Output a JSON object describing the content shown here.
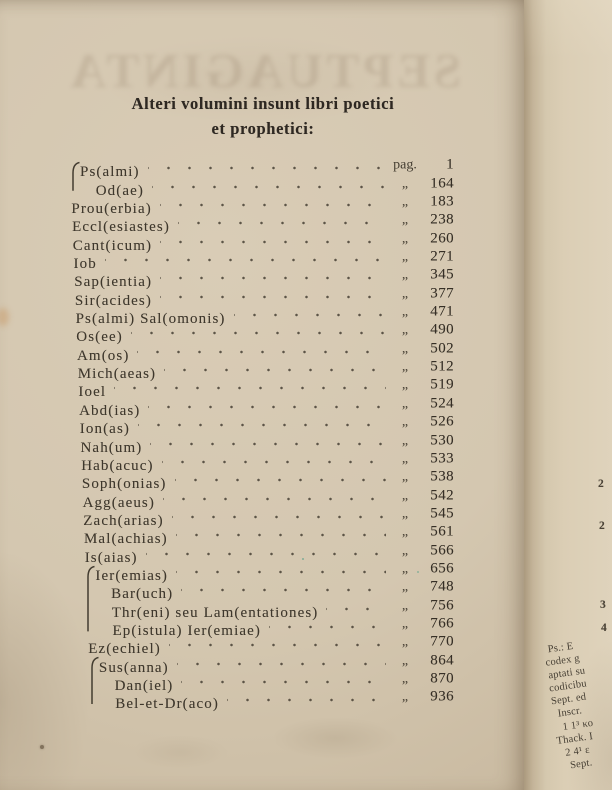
{
  "left_page": {
    "ghost_text": "SEPTUAGINTA",
    "title_line1": "Alteri volumini insunt libri poetici",
    "title_line2": "et prophetici:",
    "page_abbrev": "pag.",
    "ditto_mark": "„",
    "toc": [
      {
        "name": "Ps(almi)",
        "page": "1",
        "mark": "pag.",
        "indent": 0,
        "braced": true
      },
      {
        "name": "Od(ae)",
        "page": "164",
        "indent": 1
      },
      {
        "name": "Prou(erbia)",
        "page": "183",
        "indent": 0
      },
      {
        "name": "Eccl(esiastes)",
        "page": "238",
        "indent": 0
      },
      {
        "name": "Cant(icum)",
        "page": "260",
        "indent": 0
      },
      {
        "name": "Iob",
        "page": "271",
        "indent": 0
      },
      {
        "name": "Sap(ientia)",
        "page": "345",
        "indent": 0
      },
      {
        "name": "Sir(acides)",
        "page": "377",
        "indent": 0
      },
      {
        "name": "Ps(almi) Sal(omonis)",
        "page": "471",
        "indent": 0
      },
      {
        "name": "Os(ee)",
        "page": "490",
        "indent": 0
      },
      {
        "name": "Am(os)",
        "page": "502",
        "indent": 0
      },
      {
        "name": "Mich(aeas)",
        "page": "512",
        "indent": 0
      },
      {
        "name": "Ioel",
        "page": "519",
        "indent": 0
      },
      {
        "name": "Abd(ias)",
        "page": "524",
        "indent": 0
      },
      {
        "name": "Ion(as)",
        "page": "526",
        "indent": 0
      },
      {
        "name": "Nah(um)",
        "page": "530",
        "indent": 0
      },
      {
        "name": "Hab(acuc)",
        "page": "533",
        "indent": 0
      },
      {
        "name": "Soph(onias)",
        "page": "538",
        "indent": 0
      },
      {
        "name": "Agg(aeus)",
        "page": "542",
        "indent": 0
      },
      {
        "name": "Zach(arias)",
        "page": "545",
        "indent": 0
      },
      {
        "name": "Mal(achias)",
        "page": "561",
        "indent": 0
      },
      {
        "name": "Is(aias)",
        "page": "566",
        "indent": 0
      },
      {
        "name": "Ier(emias)",
        "page": "656",
        "indent": 0,
        "braced": true
      },
      {
        "name": "Bar(uch)",
        "page": "748",
        "indent": 1
      },
      {
        "name": "Thr(eni) seu Lam(entationes)",
        "page": "756",
        "indent": 1
      },
      {
        "name": "Ep(istula) Ier(emiae)",
        "page": "766",
        "indent": 1
      },
      {
        "name": "Ez(echiel)",
        "page": "770",
        "indent": 0
      },
      {
        "name": "Sus(anna)",
        "page": "864",
        "indent": 0,
        "braced": true
      },
      {
        "name": "Dan(iel)",
        "page": "870",
        "indent": 1
      },
      {
        "name": "Bel-et-Dr(aco)",
        "page": "936",
        "indent": 1
      }
    ],
    "brace_groups": [
      {
        "start": 0,
        "span": 2
      },
      {
        "start": 22,
        "span": 4
      },
      {
        "start": 27,
        "span": 3
      }
    ]
  },
  "facing_page": {
    "marginal_numbers": [
      "2",
      "2",
      "3",
      "4"
    ],
    "footnote_lines": [
      "Ps.: E",
      "codex g",
      "aptati su",
      "codicibu",
      "Sept. ed",
      "Inscr.",
      "1 1³ κο",
      "Thack. I",
      "2 4¹ ε",
      "Sept."
    ]
  },
  "colors": {
    "paper": "#d4c7b0",
    "paper_shadow": "#bfae94",
    "facing_paper": "#dbceb5",
    "gutter_shadow": "#ab9a7e",
    "ink": "#3e372c"
  }
}
